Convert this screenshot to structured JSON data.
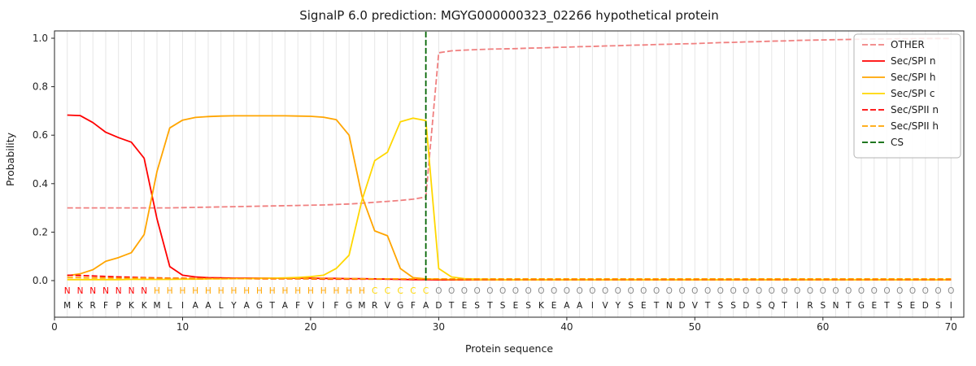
{
  "page": {
    "background": "#ffffff"
  },
  "chart_data": {
    "type": "line",
    "title": "SignalP 6.0 prediction: MGYG000000323_02266 hypothetical protein",
    "xlabel": "Protein sequence",
    "ylabel": "Probability",
    "xlim": [
      0,
      71
    ],
    "ylim_display": [
      -0.15,
      1.03
    ],
    "xticks": [
      0,
      10,
      20,
      30,
      40,
      50,
      60,
      70
    ],
    "yticks": [
      0,
      0.2,
      0.4,
      0.6,
      0.8,
      1
    ],
    "grid": "vertical-per-residue",
    "grid_color": "#e6e6e6",
    "axis_color": "#262626",
    "legend_position": "upper-right",
    "cs_label": "CS",
    "cs_position": 29,
    "cs_color": "#006400",
    "sequence": "MKRFPKKMLIAALYAGTAFVIFGMRVGFADTESTSESKEAAIVYSETNDVTSSDSQTIRSNTGETSEDSI",
    "region_labels": "NNNNNNNHHHHHHHHHHHHHHHHHCCCCCOOOOOOOOOOOOOOOOOOOOOOOOOOOOOOOOOOOOOOOOO",
    "region_colors": {
      "N": "#ff0000",
      "H": "#ffa500",
      "C": "#ffd700",
      "O": "#8c8c8c"
    },
    "sequence_color": "#1a1a1a",
    "series": [
      {
        "name": "OTHER",
        "color": "#f08080",
        "dash": true,
        "values": [
          0.3,
          0.3,
          0.3,
          0.3,
          0.3,
          0.3,
          0.3,
          0.3,
          0.3,
          0.301,
          0.302,
          0.303,
          0.304,
          0.305,
          0.306,
          0.307,
          0.308,
          0.309,
          0.31,
          0.311,
          0.312,
          0.314,
          0.316,
          0.319,
          0.323,
          0.327,
          0.331,
          0.336,
          0.345,
          0.94,
          0.948,
          0.951,
          0.953,
          0.955,
          0.956,
          0.957,
          0.959,
          0.96,
          0.962,
          0.963,
          0.965,
          0.966,
          0.968,
          0.969,
          0.971,
          0.972,
          0.974,
          0.975,
          0.977,
          0.978,
          0.98,
          0.982,
          0.983,
          0.985,
          0.986,
          0.988,
          0.989,
          0.991,
          0.992,
          0.993,
          0.994,
          0.995,
          0.996,
          0.997,
          0.997,
          0.998,
          0.998,
          0.999,
          0.999,
          0.999
        ]
      },
      {
        "name": "Sec/SPI n",
        "color": "#ff0000",
        "dash": false,
        "values": [
          0.683,
          0.681,
          0.652,
          0.612,
          0.59,
          0.571,
          0.505,
          0.255,
          0.058,
          0.022,
          0.015,
          0.012,
          0.011,
          0.01,
          0.01,
          0.01,
          0.01,
          0.01,
          0.01,
          0.01,
          0.009,
          0.009,
          0.008,
          0.008,
          0.007,
          0.006,
          0.005,
          0.004,
          0.004,
          0.003,
          0.003,
          0.003,
          0.003,
          0.003,
          0.003,
          0.003,
          0.003,
          0.003,
          0.003,
          0.003,
          0.003,
          0.003,
          0.003,
          0.003,
          0.003,
          0.003,
          0.003,
          0.003,
          0.003,
          0.003,
          0.003,
          0.003,
          0.003,
          0.003,
          0.003,
          0.003,
          0.003,
          0.003,
          0.003,
          0.003,
          0.003,
          0.003,
          0.003,
          0.003,
          0.003,
          0.003,
          0.003,
          0.003,
          0.003,
          0.003
        ]
      },
      {
        "name": "Sec/SPI h",
        "color": "#ffa500",
        "dash": false,
        "values": [
          0.02,
          0.028,
          0.045,
          0.08,
          0.095,
          0.115,
          0.19,
          0.45,
          0.63,
          0.662,
          0.673,
          0.677,
          0.679,
          0.68,
          0.68,
          0.68,
          0.68,
          0.68,
          0.679,
          0.678,
          0.674,
          0.664,
          0.6,
          0.35,
          0.205,
          0.185,
          0.05,
          0.012,
          0.007,
          0.005,
          0.004,
          0.004,
          0.003,
          0.003,
          0.003,
          0.003,
          0.003,
          0.003,
          0.003,
          0.003,
          0.003,
          0.003,
          0.003,
          0.003,
          0.003,
          0.003,
          0.003,
          0.003,
          0.003,
          0.003,
          0.003,
          0.003,
          0.003,
          0.003,
          0.003,
          0.003,
          0.003,
          0.003,
          0.003,
          0.003,
          0.003,
          0.003,
          0.003,
          0.003,
          0.003,
          0.003,
          0.003,
          0.003,
          0.003,
          0.003
        ]
      },
      {
        "name": "Sec/SPI c",
        "color": "#ffd700",
        "dash": false,
        "values": [
          0.004,
          0.004,
          0.004,
          0.004,
          0.004,
          0.005,
          0.005,
          0.005,
          0.005,
          0.006,
          0.006,
          0.007,
          0.007,
          0.008,
          0.008,
          0.009,
          0.01,
          0.011,
          0.013,
          0.016,
          0.022,
          0.05,
          0.105,
          0.33,
          0.495,
          0.53,
          0.655,
          0.67,
          0.66,
          0.05,
          0.015,
          0.008,
          0.006,
          0.005,
          0.004,
          0.004,
          0.004,
          0.004,
          0.004,
          0.004,
          0.004,
          0.004,
          0.004,
          0.004,
          0.004,
          0.004,
          0.004,
          0.004,
          0.004,
          0.004,
          0.004,
          0.004,
          0.004,
          0.004,
          0.004,
          0.004,
          0.004,
          0.004,
          0.004,
          0.004,
          0.004,
          0.004,
          0.004,
          0.004,
          0.004,
          0.004,
          0.004,
          0.004,
          0.004,
          0.004
        ]
      },
      {
        "name": "Sec/SPII n",
        "color": "#ff0000",
        "dash": true,
        "values": [
          0.022,
          0.021,
          0.019,
          0.017,
          0.015,
          0.014,
          0.012,
          0.011,
          0.01,
          0.01,
          0.009,
          0.009,
          0.008,
          0.008,
          0.008,
          0.007,
          0.007,
          0.007,
          0.007,
          0.007,
          0.006,
          0.006,
          0.006,
          0.006,
          0.006,
          0.006,
          0.006,
          0.006,
          0.005,
          0.005,
          0.005,
          0.005,
          0.005,
          0.005,
          0.005,
          0.005,
          0.005,
          0.005,
          0.005,
          0.005,
          0.005,
          0.005,
          0.005,
          0.005,
          0.005,
          0.005,
          0.005,
          0.005,
          0.005,
          0.005,
          0.005,
          0.005,
          0.005,
          0.005,
          0.005,
          0.005,
          0.005,
          0.005,
          0.005,
          0.005,
          0.005,
          0.005,
          0.005,
          0.005,
          0.005,
          0.005,
          0.005,
          0.005,
          0.005,
          0.005
        ]
      },
      {
        "name": "Sec/SPII h",
        "color": "#ffa500",
        "dash": true,
        "values": [
          0.012,
          0.012,
          0.011,
          0.011,
          0.01,
          0.01,
          0.01,
          0.009,
          0.009,
          0.009,
          0.009,
          0.008,
          0.008,
          0.008,
          0.008,
          0.008,
          0.008,
          0.008,
          0.008,
          0.008,
          0.008,
          0.008,
          0.008,
          0.007,
          0.007,
          0.007,
          0.007,
          0.007,
          0.007,
          0.007,
          0.007,
          0.007,
          0.007,
          0.007,
          0.007,
          0.007,
          0.007,
          0.007,
          0.007,
          0.007,
          0.007,
          0.007,
          0.007,
          0.007,
          0.007,
          0.007,
          0.007,
          0.007,
          0.007,
          0.007,
          0.007,
          0.007,
          0.007,
          0.007,
          0.007,
          0.007,
          0.007,
          0.007,
          0.007,
          0.007,
          0.007,
          0.007,
          0.007,
          0.007,
          0.007,
          0.007,
          0.007,
          0.007,
          0.007,
          0.007
        ]
      }
    ]
  }
}
